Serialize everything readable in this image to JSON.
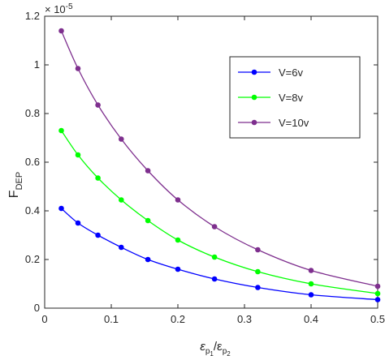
{
  "chart_data": {
    "type": "line",
    "x": [
      0.025,
      0.05,
      0.08,
      0.115,
      0.155,
      0.2,
      0.255,
      0.32,
      0.4,
      0.5
    ],
    "series": [
      {
        "name": "V=6v",
        "color": "#0000ff",
        "values": [
          0.41,
          0.35,
          0.3,
          0.25,
          0.2,
          0.16,
          0.12,
          0.085,
          0.055,
          0.035
        ]
      },
      {
        "name": "V=8v",
        "color": "#00ff00",
        "values": [
          0.73,
          0.63,
          0.535,
          0.445,
          0.36,
          0.28,
          0.21,
          0.15,
          0.1,
          0.06
        ]
      },
      {
        "name": "V=10v",
        "color": "#7e2f8e",
        "values": [
          1.14,
          0.985,
          0.835,
          0.695,
          0.565,
          0.445,
          0.335,
          0.24,
          0.155,
          0.09
        ]
      }
    ],
    "xlim": [
      0,
      0.5
    ],
    "ylim": [
      0,
      1.2
    ],
    "xticks": [
      "0",
      "0.1",
      "0.2",
      "0.3",
      "0.4",
      "0.5"
    ],
    "yticks": [
      "0",
      "0.2",
      "0.4",
      "0.6",
      "0.8",
      "1",
      "1.2"
    ],
    "xlabel": {
      "base": "ε",
      "sub1": "p",
      "sub2a": "1",
      "slash": "/ε",
      "sub3": "p",
      "sub2b": "2"
    },
    "ylabel": {
      "base": "F",
      "sub": "DEP"
    },
    "exponent": {
      "base": "× 10",
      "power": "-5"
    },
    "legend_position": "upper-right",
    "grid": false
  }
}
